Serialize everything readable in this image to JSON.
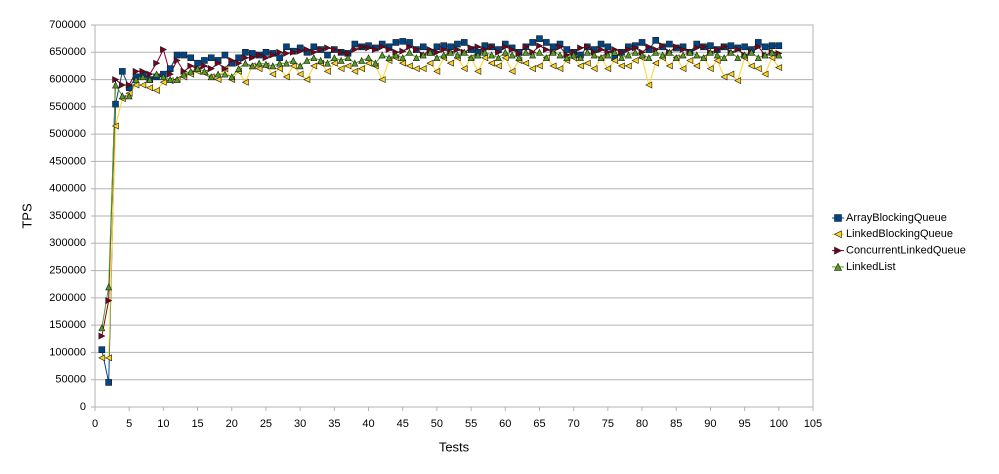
{
  "chart_data": {
    "type": "line",
    "x_label": "Tests",
    "y_label": "TPS",
    "x": [
      1,
      2,
      3,
      4,
      5,
      6,
      7,
      8,
      9,
      10,
      11,
      12,
      13,
      14,
      15,
      16,
      17,
      18,
      19,
      20,
      21,
      22,
      23,
      24,
      25,
      26,
      27,
      28,
      29,
      30,
      31,
      32,
      33,
      34,
      35,
      36,
      37,
      38,
      39,
      40,
      41,
      42,
      43,
      44,
      45,
      46,
      47,
      48,
      49,
      50,
      51,
      52,
      53,
      54,
      55,
      56,
      57,
      58,
      59,
      60,
      61,
      62,
      63,
      64,
      65,
      66,
      67,
      68,
      69,
      70,
      71,
      72,
      73,
      74,
      75,
      76,
      77,
      78,
      79,
      80,
      81,
      82,
      83,
      84,
      85,
      86,
      87,
      88,
      89,
      90,
      91,
      92,
      93,
      94,
      95,
      96,
      97,
      98,
      99,
      100
    ],
    "xlim": [
      0,
      105
    ],
    "xticks": [
      0,
      5,
      10,
      15,
      20,
      25,
      30,
      35,
      40,
      45,
      50,
      55,
      60,
      65,
      70,
      75,
      80,
      85,
      90,
      95,
      100,
      105
    ],
    "ylim": [
      0,
      700000
    ],
    "yticks": [
      0,
      50000,
      100000,
      150000,
      200000,
      250000,
      300000,
      350000,
      400000,
      450000,
      500000,
      550000,
      600000,
      650000,
      700000
    ],
    "grid": true,
    "legend": "right",
    "series": [
      {
        "name": "ArrayBlockingQueue",
        "color": "#004586",
        "marker": "square",
        "values": [
          105000,
          45000,
          555000,
          615000,
          585000,
          605000,
          610000,
          600000,
          605000,
          610000,
          620000,
          645000,
          645000,
          640000,
          630000,
          635000,
          640000,
          635000,
          645000,
          630000,
          640000,
          650000,
          648000,
          645000,
          650000,
          648000,
          640000,
          660000,
          652000,
          658000,
          650000,
          660000,
          655000,
          645000,
          655000,
          650000,
          648000,
          665000,
          660000,
          662000,
          658000,
          665000,
          660000,
          668000,
          670000,
          668000,
          655000,
          660000,
          650000,
          660000,
          662000,
          660000,
          665000,
          668000,
          655000,
          650000,
          662000,
          660000,
          655000,
          665000,
          658000,
          650000,
          660000,
          668000,
          675000,
          668000,
          660000,
          665000,
          655000,
          650000,
          645000,
          660000,
          655000,
          665000,
          660000,
          640000,
          650000,
          660000,
          662000,
          668000,
          655000,
          672000,
          660000,
          665000,
          658000,
          660000,
          650000,
          665000,
          660000,
          662000,
          655000,
          660000,
          662000,
          658000,
          660000,
          655000,
          668000,
          660000,
          662000,
          662000
        ]
      },
      {
        "name": "LinkedBlockingQueue",
        "color": "#ffd320",
        "marker": "triangle-left",
        "values": [
          90000,
          90000,
          515000,
          565000,
          575000,
          590000,
          590000,
          585000,
          580000,
          595000,
          598000,
          600000,
          605000,
          610000,
          615000,
          612000,
          605000,
          600000,
          620000,
          600000,
          615000,
          595000,
          625000,
          620000,
          625000,
          610000,
          620000,
          605000,
          625000,
          610000,
          600000,
          625000,
          630000,
          615000,
          630000,
          620000,
          625000,
          615000,
          620000,
          630000,
          625000,
          600000,
          635000,
          640000,
          630000,
          625000,
          620000,
          620000,
          630000,
          615000,
          640000,
          630000,
          640000,
          620000,
          640000,
          615000,
          640000,
          630000,
          625000,
          640000,
          615000,
          635000,
          630000,
          620000,
          625000,
          640000,
          625000,
          620000,
          635000,
          640000,
          625000,
          630000,
          620000,
          640000,
          620000,
          635000,
          625000,
          625000,
          635000,
          640000,
          590000,
          630000,
          640000,
          625000,
          640000,
          620000,
          635000,
          625000,
          640000,
          620000,
          635000,
          605000,
          610000,
          598000,
          640000,
          625000,
          620000,
          610000,
          640000,
          622000
        ]
      },
      {
        "name": "ConcurrentLinkedQueue",
        "color": "#7e0021",
        "marker": "triangle-right",
        "values": [
          130000,
          195000,
          600000,
          590000,
          590000,
          615000,
          615000,
          610000,
          630000,
          655000,
          610000,
          635000,
          615000,
          625000,
          620000,
          625000,
          620000,
          630000,
          620000,
          635000,
          630000,
          640000,
          640000,
          645000,
          640000,
          645000,
          650000,
          648000,
          650000,
          652000,
          655000,
          650000,
          655000,
          658000,
          655000,
          650000,
          648000,
          655000,
          660000,
          658000,
          655000,
          660000,
          655000,
          650000,
          652000,
          660000,
          655000,
          645000,
          655000,
          650000,
          655000,
          650000,
          655000,
          650000,
          658000,
          660000,
          655000,
          660000,
          650000,
          660000,
          655000,
          648000,
          660000,
          650000,
          662000,
          655000,
          650000,
          660000,
          645000,
          650000,
          658000,
          660000,
          650000,
          655000,
          650000,
          655000,
          650000,
          655000,
          658000,
          650000,
          660000,
          655000,
          662000,
          650000,
          660000,
          655000,
          650000,
          658000,
          660000,
          650000,
          655000,
          660000,
          650000,
          655000,
          645000,
          650000,
          660000,
          645000,
          650000,
          648000
        ]
      },
      {
        "name": "LinkedList",
        "color": "#579d1c",
        "marker": "triangle-up",
        "values": [
          145000,
          220000,
          590000,
          570000,
          570000,
          600000,
          605000,
          600000,
          610000,
          605000,
          600000,
          600000,
          610000,
          615000,
          620000,
          615000,
          605000,
          610000,
          610000,
          605000,
          620000,
          630000,
          625000,
          630000,
          628000,
          625000,
          630000,
          630000,
          635000,
          625000,
          635000,
          640000,
          635000,
          630000,
          640000,
          635000,
          640000,
          630000,
          635000,
          640000,
          630000,
          645000,
          640000,
          645000,
          640000,
          650000,
          640000,
          645000,
          650000,
          640000,
          645000,
          650000,
          645000,
          650000,
          640000,
          645000,
          650000,
          645000,
          640000,
          650000,
          645000,
          640000,
          650000,
          645000,
          650000,
          640000,
          650000,
          645000,
          640000,
          645000,
          640000,
          650000,
          645000,
          640000,
          645000,
          650000,
          640000,
          645000,
          650000,
          645000,
          640000,
          650000,
          645000,
          650000,
          640000,
          645000,
          650000,
          645000,
          640000,
          650000,
          645000,
          640000,
          650000,
          640000,
          645000,
          650000,
          640000,
          645000,
          650000,
          645000
        ]
      }
    ]
  }
}
